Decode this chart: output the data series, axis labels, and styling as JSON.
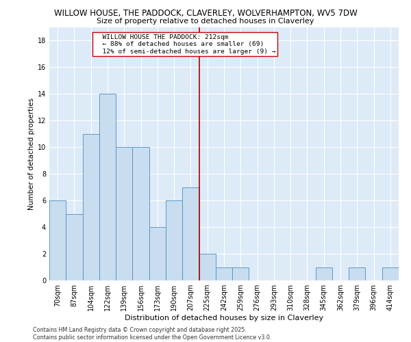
{
  "title1": "WILLOW HOUSE, THE PADDOCK, CLAVERLEY, WOLVERHAMPTON, WV5 7DW",
  "title2": "Size of property relative to detached houses in Claverley",
  "xlabel": "Distribution of detached houses by size in Claverley",
  "ylabel": "Number of detached properties",
  "categories": [
    "70sqm",
    "87sqm",
    "104sqm",
    "122sqm",
    "139sqm",
    "156sqm",
    "173sqm",
    "190sqm",
    "207sqm",
    "225sqm",
    "242sqm",
    "259sqm",
    "276sqm",
    "293sqm",
    "310sqm",
    "328sqm",
    "345sqm",
    "362sqm",
    "379sqm",
    "396sqm",
    "414sqm"
  ],
  "values": [
    6,
    5,
    11,
    14,
    10,
    10,
    4,
    6,
    7,
    2,
    1,
    1,
    0,
    0,
    0,
    0,
    1,
    0,
    1,
    0,
    1
  ],
  "bar_color": "#c8ddef",
  "bar_edge_color": "#4a8fbf",
  "bar_width": 1.0,
  "vline_x": 8.5,
  "vline_color": "#aa0000",
  "annotation_text": "  WILLOW HOUSE THE PADDOCK: 212sqm\n  ← 88% of detached houses are smaller (69)\n  12% of semi-detached houses are larger (9) →",
  "annotation_box_edge": "#cc0000",
  "annotation_box_bg": "#ffffff",
  "ylim": [
    0,
    19
  ],
  "yticks": [
    0,
    2,
    4,
    6,
    8,
    10,
    12,
    14,
    16,
    18
  ],
  "background_color": "#ddeaf8",
  "grid_color": "#ffffff",
  "footer": "Contains HM Land Registry data © Crown copyright and database right 2025.\nContains public sector information licensed under the Open Government Licence v3.0.",
  "title1_fontsize": 8.5,
  "title2_fontsize": 8,
  "xlabel_fontsize": 8,
  "ylabel_fontsize": 7.5,
  "tick_fontsize": 7,
  "annotation_fontsize": 6.8,
  "footer_fontsize": 5.8
}
